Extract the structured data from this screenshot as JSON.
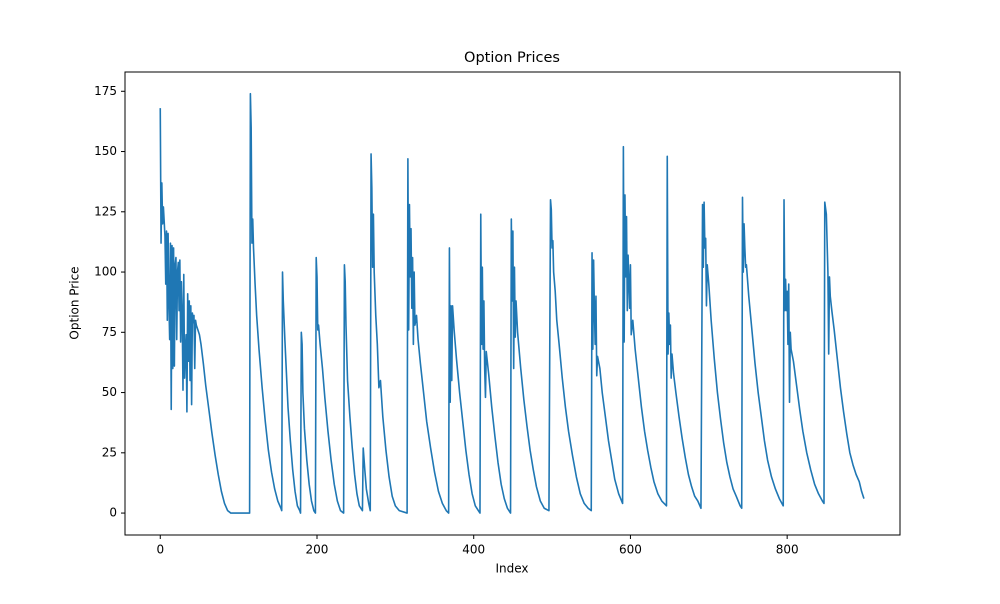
{
  "chart_data": {
    "type": "line",
    "title": "Option Prices",
    "x_label": "Index",
    "y_label": "Option Price",
    "xlim": [
      -45,
      944
    ],
    "ylim": [
      -9.1,
      183
    ],
    "xticks": [
      0,
      200,
      400,
      600,
      800
    ],
    "yticks": [
      0,
      25,
      50,
      75,
      100,
      125,
      150,
      175
    ],
    "grid": false,
    "series": [
      {
        "name": "Option Price",
        "color": "#1f77b4",
        "x": [
          0,
          1,
          2,
          3,
          4,
          6,
          7,
          8,
          9,
          10,
          11,
          12,
          13,
          14,
          15,
          16,
          17,
          18,
          19,
          20,
          21,
          22,
          23,
          24,
          25,
          26,
          27,
          28,
          29,
          30,
          31,
          32,
          33,
          34,
          35,
          36,
          37,
          38,
          39,
          40,
          41,
          42,
          43,
          44,
          45,
          46,
          48,
          50,
          52,
          55,
          58,
          62,
          66,
          70,
          74,
          78,
          82,
          86,
          90,
          114,
          115,
          116,
          117,
          118,
          119,
          121,
          123,
          126,
          130,
          134,
          138,
          142,
          146,
          150,
          154,
          155,
          156,
          157,
          159,
          161,
          163,
          166,
          169,
          172,
          175,
          178,
          179,
          180,
          181,
          182,
          184,
          187,
          190,
          193,
          196,
          198,
          199,
          200,
          201,
          202,
          204,
          207,
          210,
          214,
          218,
          222,
          226,
          230,
          234,
          235,
          236,
          237,
          239,
          242,
          245,
          248,
          251,
          254,
          258,
          259,
          261,
          263,
          266,
          268,
          269,
          270,
          271,
          272,
          273,
          275,
          277,
          279,
          281,
          284,
          288,
          292,
          296,
          300,
          305,
          315,
          316,
          317,
          318,
          319,
          320,
          321,
          322,
          323,
          324,
          325,
          327,
          329,
          332,
          336,
          340,
          345,
          350,
          355,
          360,
          365,
          368,
          369,
          370,
          371,
          372,
          373,
          375,
          378,
          382,
          386,
          390,
          394,
          398,
          402,
          406,
          408,
          409,
          410,
          411,
          412,
          413,
          414,
          415,
          416,
          419,
          423,
          427,
          431,
          435,
          439,
          443,
          447,
          448,
          449,
          450,
          451,
          452,
          453,
          454,
          456,
          460,
          464,
          468,
          472,
          476,
          480,
          485,
          490,
          496,
          498,
          499,
          500,
          501,
          502,
          504,
          506,
          509,
          513,
          517,
          521,
          526,
          531,
          536,
          541,
          546,
          550,
          551,
          552,
          553,
          554,
          555,
          556,
          557,
          558,
          561,
          564,
          568,
          572,
          576,
          580,
          585,
          590,
          591,
          592,
          593,
          594,
          595,
          596,
          597,
          598,
          599,
          600,
          601,
          603,
          606,
          610,
          614,
          618,
          622,
          626,
          630,
          635,
          640,
          646,
          647,
          648,
          649,
          650,
          651,
          652,
          653,
          655,
          658,
          662,
          666,
          670,
          674,
          678,
          682,
          686,
          690,
          692,
          693,
          694,
          695,
          696,
          697,
          698,
          700,
          703,
          707,
          711,
          715,
          719,
          723,
          727,
          731,
          735,
          740,
          742,
          743,
          744,
          745,
          746,
          747,
          748,
          751,
          755,
          759,
          763,
          767,
          771,
          775,
          780,
          785,
          790,
          795,
          796,
          797,
          798,
          799,
          800,
          801,
          802,
          803,
          804,
          805,
          808,
          812,
          816,
          820,
          825,
          830,
          835,
          840,
          845,
          847,
          848,
          850,
          852,
          853,
          854,
          855,
          857,
          860,
          864,
          868,
          872,
          876,
          880,
          884,
          888,
          892,
          895,
          897,
          898
        ],
        "values": [
          168,
          112,
          137,
          120,
          127,
          115,
          95,
          117,
          80,
          116,
          88,
          72,
          112,
          43,
          111,
          60,
          110,
          61,
          103,
          106,
          72,
          100,
          104,
          84,
          105,
          71,
          96,
          82,
          51,
          99,
          56,
          67,
          74,
          42,
          91,
          63,
          88,
          55,
          86,
          45,
          83,
          79,
          82,
          60,
          80,
          78,
          76,
          74,
          70,
          62,
          53,
          43,
          33,
          24,
          16,
          9,
          4,
          1,
          0,
          0,
          174,
          160,
          112,
          122,
          110,
          95,
          82,
          68,
          52,
          38,
          26,
          17,
          10,
          5,
          2,
          1,
          100,
          88,
          72,
          58,
          44,
          30,
          18,
          9,
          3,
          1,
          0,
          75,
          70,
          50,
          35,
          22,
          12,
          5,
          1,
          0,
          106,
          98,
          76,
          78,
          70,
          60,
          48,
          34,
          22,
          12,
          5,
          1,
          0,
          103,
          96,
          78,
          55,
          40,
          27,
          16,
          8,
          3,
          1,
          27,
          18,
          10,
          4,
          1,
          149,
          135,
          102,
          124,
          100,
          82,
          70,
          52,
          55,
          40,
          26,
          15,
          7,
          3,
          1,
          0,
          147,
          76,
          128,
          98,
          118,
          85,
          106,
          70,
          100,
          78,
          82,
          72,
          62,
          50,
          38,
          27,
          17,
          9,
          4,
          1,
          0,
          110,
          46,
          86,
          55,
          86,
          76,
          64,
          50,
          38,
          26,
          16,
          8,
          3,
          1,
          0,
          124,
          70,
          102,
          68,
          88,
          60,
          48,
          67,
          58,
          44,
          32,
          21,
          12,
          6,
          2,
          0,
          122,
          88,
          117,
          60,
          102,
          73,
          88,
          75,
          60,
          47,
          36,
          26,
          18,
          11,
          5,
          2,
          1,
          130,
          126,
          110,
          113,
          100,
          92,
          80,
          70,
          56,
          44,
          34,
          24,
          15,
          8,
          4,
          2,
          1,
          108,
          68,
          105,
          85,
          70,
          90,
          57,
          65,
          60,
          50,
          40,
          30,
          22,
          14,
          8,
          4,
          152,
          71,
          132,
          98,
          123,
          84,
          107,
          96,
          85,
          103,
          74,
          80,
          68,
          56,
          44,
          34,
          26,
          19,
          13,
          8,
          5,
          3,
          148,
          66,
          83,
          70,
          78,
          56,
          66,
          58,
          50,
          40,
          31,
          23,
          16,
          11,
          7,
          5,
          2,
          128,
          102,
          129,
          110,
          114,
          86,
          103,
          95,
          80,
          64,
          50,
          39,
          29,
          21,
          15,
          10,
          7,
          3,
          2,
          131,
          100,
          120,
          110,
          102,
          103,
          90,
          76,
          62,
          50,
          40,
          30,
          22,
          15,
          10,
          6,
          3,
          130,
          84,
          97,
          84,
          92,
          70,
          95,
          46,
          75,
          68,
          63,
          53,
          43,
          34,
          25,
          18,
          12,
          8,
          5,
          4,
          129,
          124,
          100,
          66,
          98,
          90,
          84,
          76,
          64,
          52,
          42,
          33,
          25,
          20,
          16,
          13,
          9,
          7,
          6
        ]
      }
    ]
  }
}
